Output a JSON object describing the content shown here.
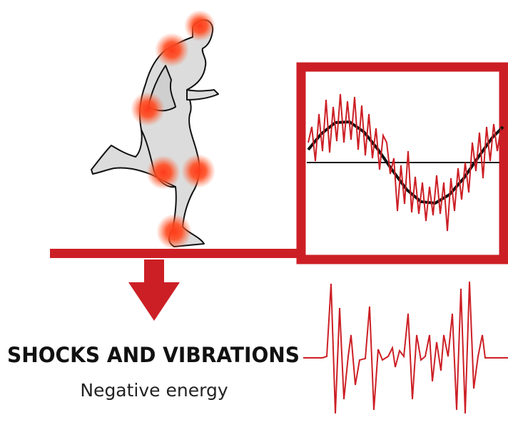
{
  "title": "SHOCKS AND VIBRATIONS",
  "subtitle": "Negative energy"
}
